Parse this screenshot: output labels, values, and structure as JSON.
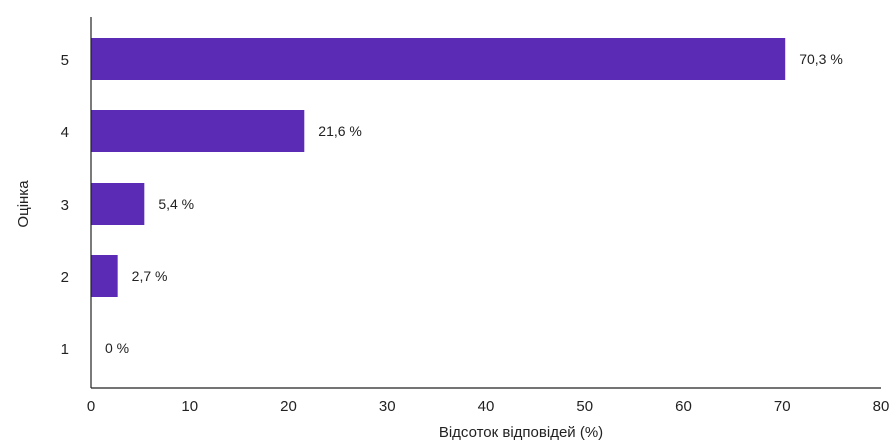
{
  "chart_data": {
    "type": "bar",
    "orientation": "horizontal",
    "categories": [
      "5",
      "4",
      "3",
      "2",
      "1"
    ],
    "values": [
      70.3,
      21.6,
      5.4,
      2.7,
      0
    ],
    "data_labels": [
      "70,3 %",
      "21,6 %",
      "5,4 %",
      "2,7 %",
      "0 %"
    ],
    "xlabel": "Відсоток відповідей (%)",
    "ylabel": "Оцінка",
    "xlim": [
      0,
      80
    ],
    "x_ticks": [
      0,
      10,
      20,
      30,
      40,
      50,
      60,
      70,
      80
    ],
    "x_tick_labels": [
      "0",
      "10",
      "20",
      "30",
      "40",
      "50",
      "60",
      "70",
      "80"
    ],
    "grid": false,
    "colors": {
      "bar": "#5b2bb5",
      "axis": "#222222"
    }
  }
}
